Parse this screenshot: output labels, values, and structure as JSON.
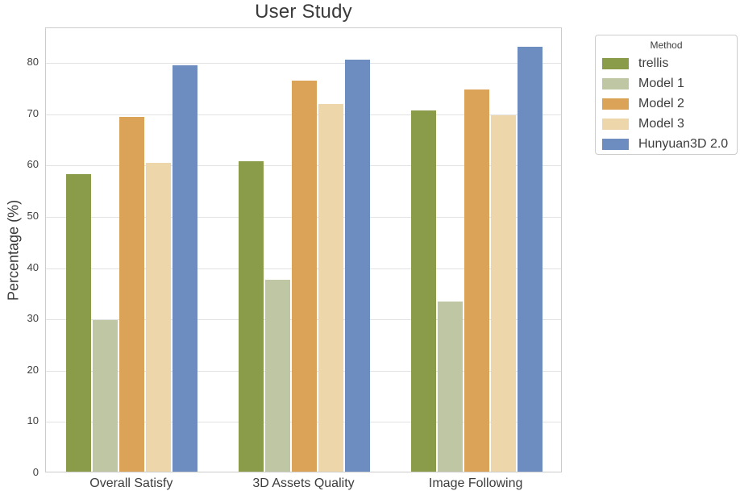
{
  "figure": {
    "title": "User Study",
    "ylabel": "Percentage (%)"
  },
  "chart_data": {
    "type": "bar",
    "title": "User Study",
    "xlabel": "",
    "ylabel": "Percentage (%)",
    "categories": [
      "Overall Satisfy",
      "3D Assets Quality",
      "Image Following"
    ],
    "series": [
      {
        "name": "trellis",
        "color": "#8a9c49",
        "values": [
          58.0,
          60.6,
          70.4
        ]
      },
      {
        "name": "Model 1",
        "color": "#bfc6a4",
        "values": [
          29.5,
          37.4,
          33.2
        ]
      },
      {
        "name": "Model 2",
        "color": "#dba358",
        "values": [
          69.2,
          76.3,
          74.6
        ]
      },
      {
        "name": "Model 3",
        "color": "#eed6ab",
        "values": [
          60.3,
          71.7,
          69.5
        ]
      },
      {
        "name": "Hunyuan3D 2.0",
        "color": "#6d8dc1",
        "values": [
          79.2,
          80.4,
          82.9
        ]
      }
    ],
    "ylim": [
      0,
      86.8
    ],
    "yticks": [
      0,
      10,
      20,
      30,
      40,
      50,
      60,
      70,
      80
    ],
    "grid": true,
    "legend": {
      "title": "Method",
      "position": "outside-upper-right"
    }
  },
  "style": {
    "grid_color": "#e2e2e2",
    "spine_color": "#cccccc",
    "text_color": "#3d3d3d"
  }
}
